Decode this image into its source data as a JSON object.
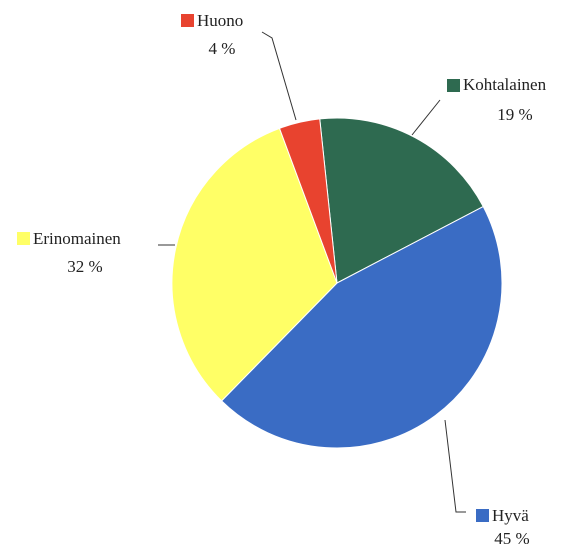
{
  "chart_data": {
    "type": "pie",
    "categories": [
      "Kohtalainen",
      "Hyvä",
      "Erinomainen",
      "Huono"
    ],
    "values": [
      19,
      45,
      32,
      4
    ],
    "value_labels": [
      "19 %",
      "45 %",
      "32 %",
      "4 %"
    ],
    "colors": [
      "#2e6a50",
      "#3a6cc4",
      "#ffff66",
      "#e8432f"
    ]
  }
}
